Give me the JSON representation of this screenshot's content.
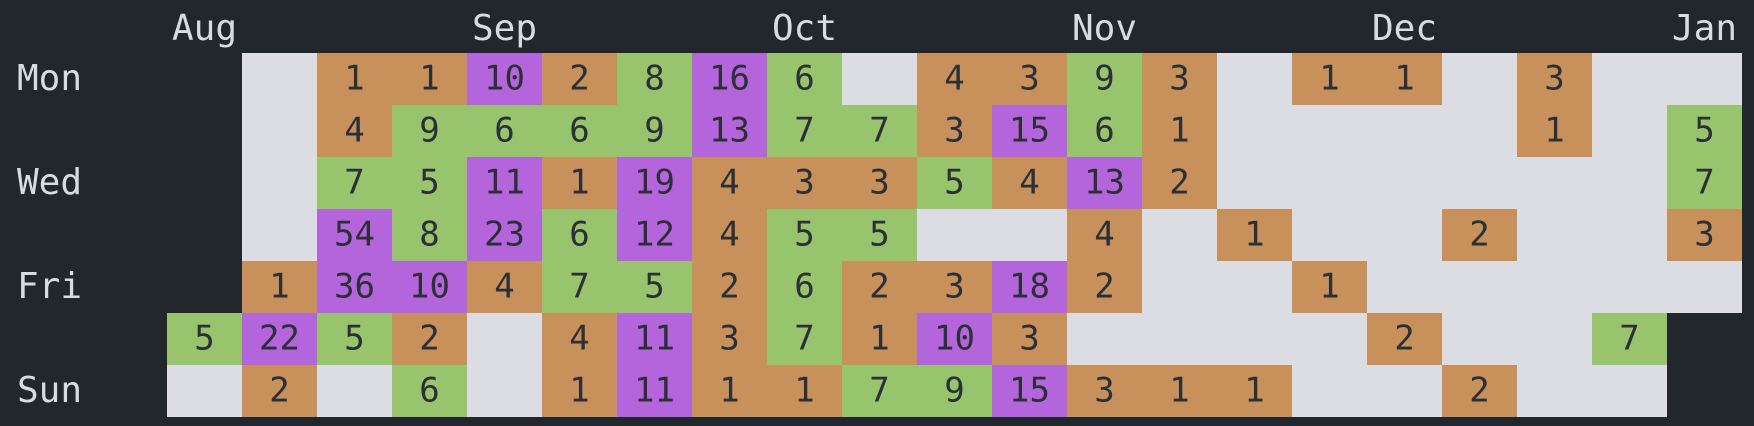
{
  "chart_data": {
    "type": "heatmap",
    "title": "",
    "month_labels": [
      {
        "label": "Aug",
        "col": 0
      },
      {
        "label": "Sep",
        "col": 4
      },
      {
        "label": "Oct",
        "col": 8
      },
      {
        "label": "Nov",
        "col": 12
      },
      {
        "label": "Dec",
        "col": 16
      },
      {
        "label": "Jan",
        "col": 20
      }
    ],
    "day_labels": [
      {
        "label": "Mon",
        "row": 0
      },
      {
        "label": "Wed",
        "row": 2
      },
      {
        "label": "Fri",
        "row": 4
      },
      {
        "label": "Sun",
        "row": 6
      }
    ],
    "row_order": [
      "Mon",
      "Tue",
      "Wed",
      "Thu",
      "Fri",
      "Sat",
      "Sun"
    ],
    "columns": 21,
    "weeks": [
      [
        null,
        null,
        null,
        null,
        null,
        5,
        0
      ],
      [
        0,
        0,
        0,
        0,
        1,
        22,
        2
      ],
      [
        1,
        4,
        7,
        54,
        36,
        5,
        0
      ],
      [
        1,
        9,
        5,
        8,
        10,
        2,
        6
      ],
      [
        10,
        6,
        11,
        23,
        4,
        0,
        0
      ],
      [
        2,
        6,
        1,
        6,
        7,
        4,
        1
      ],
      [
        8,
        9,
        19,
        12,
        5,
        11,
        11
      ],
      [
        16,
        13,
        4,
        4,
        2,
        3,
        1
      ],
      [
        6,
        7,
        3,
        5,
        6,
        7,
        1
      ],
      [
        0,
        7,
        3,
        5,
        2,
        1,
        7
      ],
      [
        4,
        3,
        5,
        0,
        3,
        10,
        9
      ],
      [
        3,
        15,
        4,
        0,
        18,
        3,
        15
      ],
      [
        9,
        6,
        13,
        4,
        2,
        0,
        3
      ],
      [
        3,
        1,
        2,
        0,
        0,
        0,
        1
      ],
      [
        0,
        0,
        0,
        1,
        0,
        0,
        1
      ],
      [
        1,
        0,
        0,
        0,
        1,
        0,
        0
      ],
      [
        1,
        0,
        0,
        0,
        0,
        2,
        0
      ],
      [
        0,
        0,
        0,
        2,
        0,
        0,
        2
      ],
      [
        3,
        1,
        0,
        0,
        0,
        0,
        0
      ],
      [
        0,
        0,
        0,
        0,
        0,
        7,
        0
      ],
      [
        0,
        5,
        7,
        3,
        0,
        null,
        null
      ]
    ],
    "color_rules": [
      {
        "min": 0,
        "max": 0,
        "color": "#dcdde2",
        "show_label": false
      },
      {
        "min": 1,
        "max": 4,
        "color": "#c8905a",
        "show_label": true
      },
      {
        "min": 5,
        "max": 9,
        "color": "#97c46c",
        "show_label": true
      },
      {
        "min": 10,
        "max": 999,
        "color": "#b565db",
        "show_label": true
      }
    ]
  }
}
